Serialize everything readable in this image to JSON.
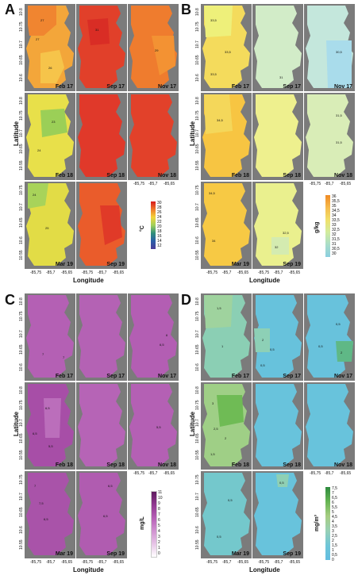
{
  "panels": [
    {
      "letter": "A",
      "maps": [
        "Feb 17",
        "Sep 17",
        "Nov 17",
        "Feb 18",
        "Sep 18",
        "Nov 18",
        "Mar 19",
        "Sep 19"
      ],
      "legend_unit": "°C",
      "legend_ticks": [
        "30",
        "28",
        "26",
        "24",
        "22",
        "20",
        "18",
        "16",
        "14",
        "12"
      ],
      "legend_colors": [
        "#d7191c",
        "#e8502a",
        "#f07a2b",
        "#f5a62f",
        "#f2d43a",
        "#d6e24a",
        "#9fcf5a",
        "#5cb86a",
        "#2f8f7a",
        "#2a5ea8",
        "#4b3b98"
      ]
    },
    {
      "letter": "B",
      "maps": [
        "Feb 17",
        "Sep 17",
        "Nov 17",
        "Feb 18",
        "Sep 18",
        "Nov 18",
        "Mar 19",
        "Sep 19"
      ],
      "legend_unit": "g/kg",
      "legend_ticks": [
        "36",
        "35,5",
        "35",
        "34,5",
        "34",
        "33,5",
        "33",
        "32,5",
        "32",
        "31,5",
        "31",
        "30,5",
        "30"
      ],
      "legend_colors": [
        "#f08a24",
        "#f3a23a",
        "#f6bb4c",
        "#f7cf57",
        "#f1e06a",
        "#e4ea86",
        "#d2ec9e",
        "#bfe6b6",
        "#a9ddc9",
        "#96d4d6",
        "#8bcfe0"
      ]
    },
    {
      "letter": "C",
      "maps": [
        "Feb 17",
        "Sep 17",
        "Nov 17",
        "Feb 18",
        "Sep 18",
        "Nov 18",
        "Mar 19",
        "Sep 19"
      ],
      "legend_unit": "mg/L",
      "legend_ticks": [
        "11",
        "10",
        "9",
        "8",
        "7",
        "6",
        "5",
        "4",
        "3",
        "2",
        "1",
        "0"
      ],
      "legend_colors": [
        "#5e1a5e",
        "#7a287a",
        "#913991",
        "#a64aa6",
        "#b65fb6",
        "#c478c4",
        "#d092d0",
        "#dbabdb",
        "#e6c4e6",
        "#efdbef",
        "#f8eef8",
        "#ffffff"
      ]
    },
    {
      "letter": "D",
      "maps": [
        "Feb 17",
        "Sep 17",
        "Nov 17",
        "Feb 18",
        "Sep 18",
        "Nov 18",
        "Mar 19",
        "Sep 19"
      ],
      "legend_unit": "mg/m³",
      "legend_ticks": [
        "7,5",
        "7",
        "6,5",
        "6",
        "5,5",
        "5",
        "4,5",
        "4",
        "3,5",
        "3",
        "2,5",
        "2",
        "1,5",
        "1",
        "0,5",
        "0"
      ],
      "legend_colors": [
        "#2e8b3e",
        "#3f9a45",
        "#52a84c",
        "#66b553",
        "#7dbf62",
        "#93c772",
        "#a7cd82",
        "#b7d194",
        "#a9d2a6",
        "#98d0b6",
        "#87cdc4",
        "#78c9d1",
        "#6fc6d8",
        "#68c2dc",
        "#64bfde",
        "#62bde0"
      ]
    }
  ],
  "axes": {
    "ylabel": "Latitude",
    "xlabel": "Longitude",
    "yticks": [
      "10.8",
      "10.75",
      "10.7",
      "10.65",
      "10.6",
      "10.55"
    ],
    "xticks": [
      "-85,75",
      "-85,7",
      "-85,65"
    ]
  }
}
